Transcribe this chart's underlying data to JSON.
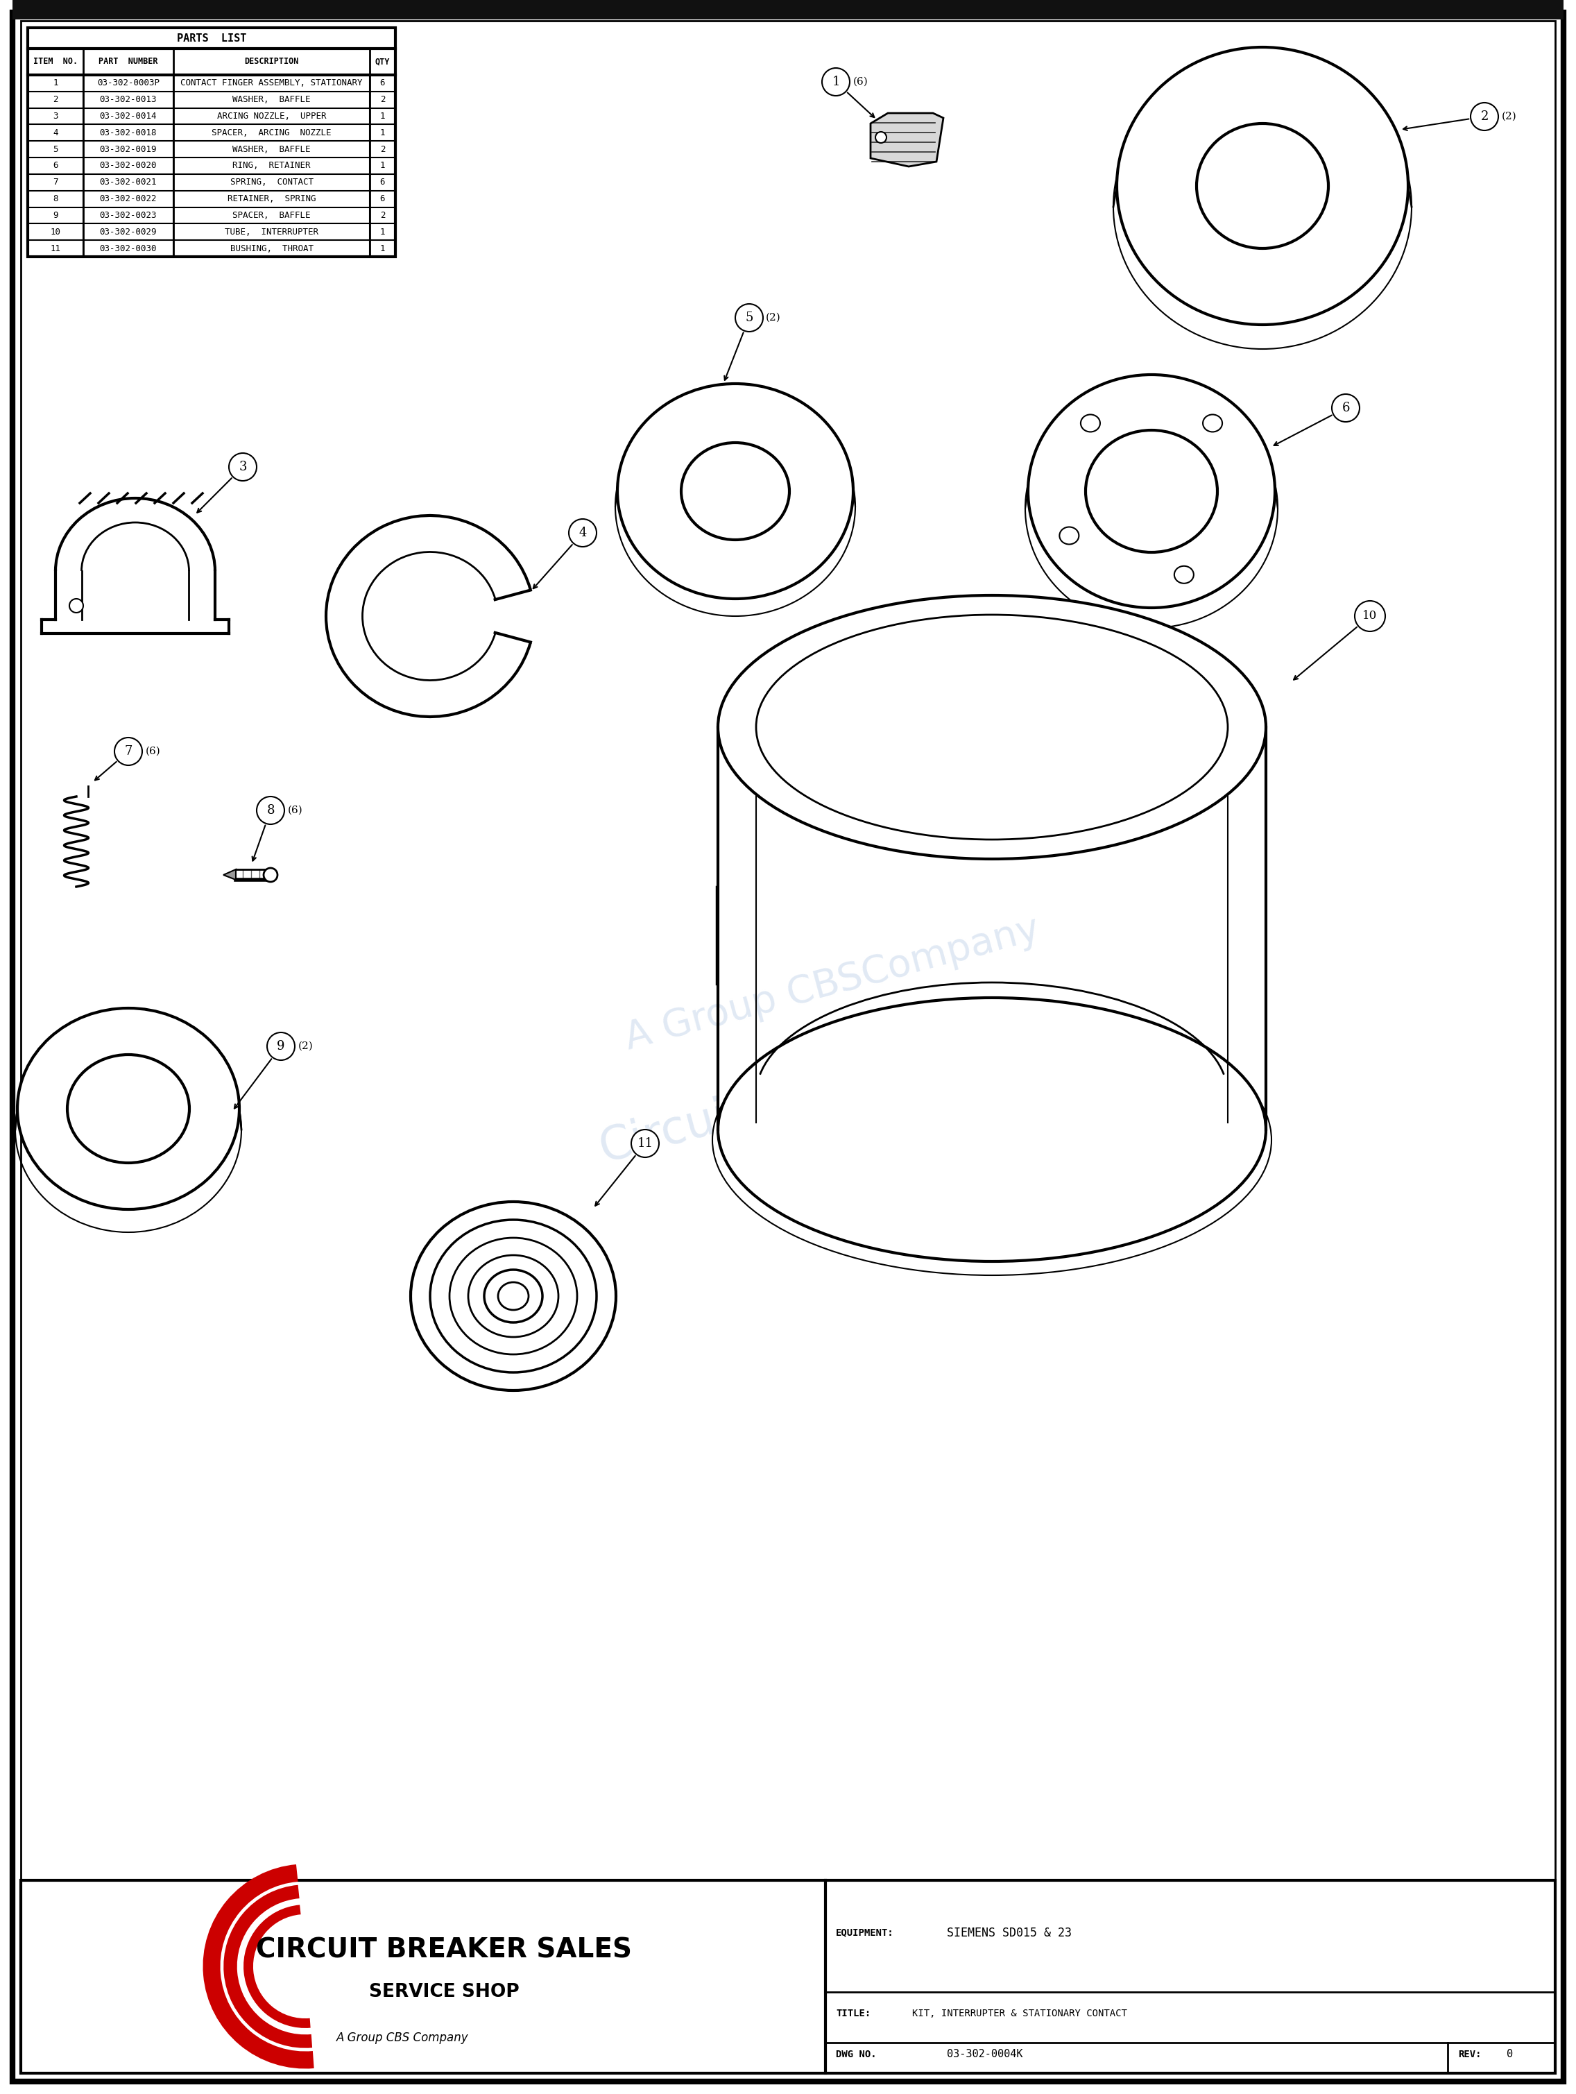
{
  "title": "PARTS  LIST",
  "table_headers": [
    "ITEM  NO.",
    "PART  NUMBER",
    "DESCRIPTION",
    "QTY"
  ],
  "table_rows": [
    [
      "1",
      "03-302-0003P",
      "CONTACT FINGER ASSEMBLY, STATIONARY",
      "6"
    ],
    [
      "2",
      "03-302-0013",
      "WASHER,  BAFFLE",
      "2"
    ],
    [
      "3",
      "03-302-0014",
      "ARCING NOZZLE,  UPPER",
      "1"
    ],
    [
      "4",
      "03-302-0018",
      "SPACER,  ARCING  NOZZLE",
      "1"
    ],
    [
      "5",
      "03-302-0019",
      "WASHER,  BAFFLE",
      "2"
    ],
    [
      "6",
      "03-302-0020",
      "RING,  RETAINER",
      "1"
    ],
    [
      "7",
      "03-302-0021",
      "SPRING,  CONTACT",
      "6"
    ],
    [
      "8",
      "03-302-0022",
      "RETAINER,  SPRING",
      "6"
    ],
    [
      "9",
      "03-302-0023",
      "SPACER,  BAFFLE",
      "2"
    ],
    [
      "10",
      "03-302-0029",
      "TUBE,  INTERRUPTER",
      "1"
    ],
    [
      "11",
      "03-302-0030",
      "BUSHING,  THROAT",
      "1"
    ]
  ],
  "equipment_label": "EQUIPMENT:",
  "equipment_value": "SIEMENS SD015 & 23",
  "title_label": "TITLE:",
  "title_value": "KIT, INTERRUPTER & STATIONARY CONTACT",
  "dwg_label": "DWG NO.",
  "dwg_value": "03-302-0004K",
  "rev_label": "REV:",
  "rev_value": "0",
  "company_name": "CIRCUIT BREAKER SALES",
  "company_sub": "SERVICE SHOP",
  "company_tagline": "A Group CBS Company",
  "bg_color": "#ffffff"
}
